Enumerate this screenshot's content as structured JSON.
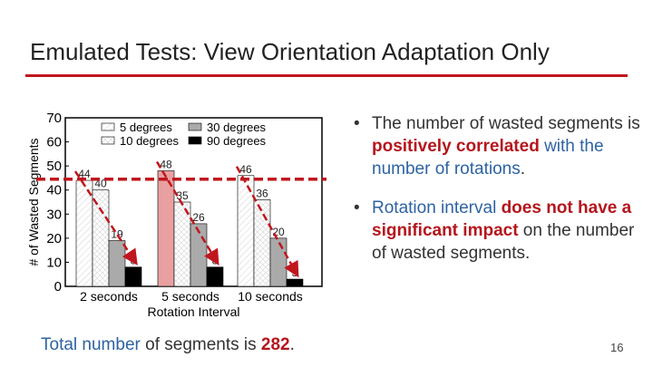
{
  "slide": {
    "title": "Emulated Tests: View Orientation Adaptation Only",
    "number": "16",
    "colors": {
      "accent": "#c0161d",
      "blue_text": "#2e63a1",
      "red_text": "#b5161d"
    }
  },
  "bullets": [
    {
      "parts": [
        {
          "text": "The number of wasted segments is ",
          "style": "plain"
        },
        {
          "text": "positively correlated",
          "style": "red"
        },
        {
          "text": " with the number of rotations",
          "style": "blue"
        },
        {
          "text": ".",
          "style": "plain"
        }
      ]
    },
    {
      "parts": [
        {
          "text": "Rotation interval",
          "style": "blue"
        },
        {
          "text": " does not have a significant impact",
          "style": "red"
        },
        {
          "text": " on the number of wasted segments.",
          "style": "plain"
        }
      ]
    }
  ],
  "footer": {
    "parts": [
      {
        "text": "Total number",
        "style": "blue"
      },
      {
        "text": " of segments is ",
        "style": "plain"
      },
      {
        "text": "282",
        "style": "red"
      },
      {
        "text": ".",
        "style": "plain"
      }
    ]
  },
  "chart_data": {
    "type": "bar",
    "title": "",
    "xlabel": "Rotation Interval",
    "ylabel": "# of Wasted Segments",
    "ylim": [
      0,
      70
    ],
    "yticks": [
      0,
      10,
      20,
      30,
      40,
      50,
      60,
      70
    ],
    "categories": [
      "2 seconds",
      "5 seconds",
      "10 seconds"
    ],
    "legend_position": "top",
    "series": [
      {
        "name": "5 degrees",
        "values": [
          44,
          48,
          46
        ],
        "color": "#ffffff",
        "highlight_color": "#e8a0a0",
        "pattern": "hatch"
      },
      {
        "name": "10 degrees",
        "values": [
          40,
          35,
          36
        ],
        "color": "#ffffff",
        "pattern": "cross"
      },
      {
        "name": "30 degrees",
        "values": [
          19,
          26,
          20
        ],
        "color": "#aaaaaa"
      },
      {
        "name": "90 degrees",
        "values": [
          8,
          8,
          3
        ],
        "color": "#000000"
      }
    ],
    "annotations": [
      {
        "type": "reference_line",
        "y": 44.5,
        "style": "dashed",
        "color": "#c0161d"
      },
      {
        "type": "trend_arrows",
        "style": "dashed",
        "color": "#c0161d"
      }
    ],
    "grid": false
  }
}
